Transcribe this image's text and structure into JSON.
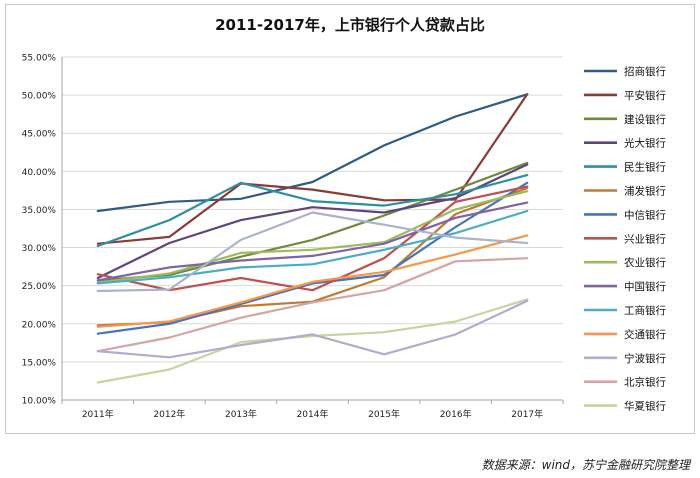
{
  "chart_data": {
    "type": "line",
    "title": "2011-2017年，上市银行个人贷款占比",
    "xlabel": "",
    "ylabel": "",
    "categories": [
      "2011年",
      "2012年",
      "2013年",
      "2014年",
      "2015年",
      "2016年",
      "2017年"
    ],
    "ylim": [
      10,
      55
    ],
    "y_ticks": [
      "10.00%",
      "15.00%",
      "20.00%",
      "25.00%",
      "30.00%",
      "35.00%",
      "40.00%",
      "45.00%",
      "50.00%",
      "55.00%"
    ],
    "grid": true,
    "legend_position": "right",
    "series": [
      {
        "name": "招商银行",
        "color": "#2f5b87",
        "values": [
          34.8,
          36.0,
          36.4,
          38.6,
          43.4,
          47.2,
          50.1
        ]
      },
      {
        "name": "平安银行",
        "color": "#8b3a36",
        "values": [
          30.5,
          31.4,
          38.4,
          37.6,
          36.2,
          36.3,
          50.1
        ]
      },
      {
        "name": "建设银行",
        "color": "#6e8b3d",
        "values": [
          25.7,
          26.4,
          28.8,
          31.0,
          34.2,
          37.6,
          41.1
        ]
      },
      {
        "name": "光大银行",
        "color": "#5d4580",
        "values": [
          26.0,
          30.6,
          33.6,
          35.3,
          34.6,
          36.5,
          40.9
        ]
      },
      {
        "name": "民生银行",
        "color": "#2e8fa4",
        "values": [
          30.2,
          33.6,
          38.5,
          36.1,
          35.5,
          37.0,
          39.5
        ]
      },
      {
        "name": "浦发银行",
        "color": "#c07b32",
        "values": [
          19.8,
          20.2,
          22.3,
          22.9,
          26.1,
          34.4,
          37.8
        ]
      },
      {
        "name": "中信银行",
        "color": "#4472c4",
        "values": [
          18.7,
          20.0,
          22.6,
          25.3,
          26.4,
          32.7,
          38.5
        ]
      },
      {
        "name": "兴业银行",
        "color": "#c0504d",
        "values": [
          26.5,
          24.4,
          26.0,
          24.4,
          28.6,
          36.0,
          38.0
        ]
      },
      {
        "name": "农业银行",
        "color": "#9bbb59",
        "values": [
          25.4,
          26.6,
          29.3,
          29.7,
          30.7,
          35.0,
          37.4
        ]
      },
      {
        "name": "中国银行",
        "color": "#8064a2",
        "values": [
          25.7,
          27.4,
          28.3,
          28.9,
          30.5,
          33.9,
          35.9
        ]
      },
      {
        "name": "工商银行",
        "color": "#4bacc6",
        "values": [
          25.3,
          26.1,
          27.4,
          27.8,
          29.7,
          31.9,
          34.8
        ]
      },
      {
        "name": "交通银行",
        "color": "#f79646",
        "values": [
          19.6,
          20.3,
          22.8,
          25.5,
          26.8,
          29.1,
          31.6
        ]
      },
      {
        "name": "宁波银行",
        "color": "#aab3cc",
        "values": [
          24.3,
          24.5,
          31.0,
          34.6,
          33.0,
          31.3,
          30.6
        ]
      },
      {
        "name": "北京银行",
        "color": "#d6a4a2",
        "values": [
          16.4,
          18.2,
          20.8,
          22.8,
          24.4,
          28.2,
          28.6
        ]
      },
      {
        "name": "华夏银行",
        "color": "#c3d69b",
        "values": [
          12.3,
          14.0,
          17.6,
          18.4,
          18.9,
          20.3,
          23.2
        ]
      },
      {
        "name": "",
        "color": "#b6a8cf",
        "values": [
          16.4,
          15.6,
          17.2,
          18.6,
          16.0,
          18.6,
          23.0
        ]
      }
    ]
  },
  "source_note": "数据来源：wind，苏宁金融研究院整理"
}
